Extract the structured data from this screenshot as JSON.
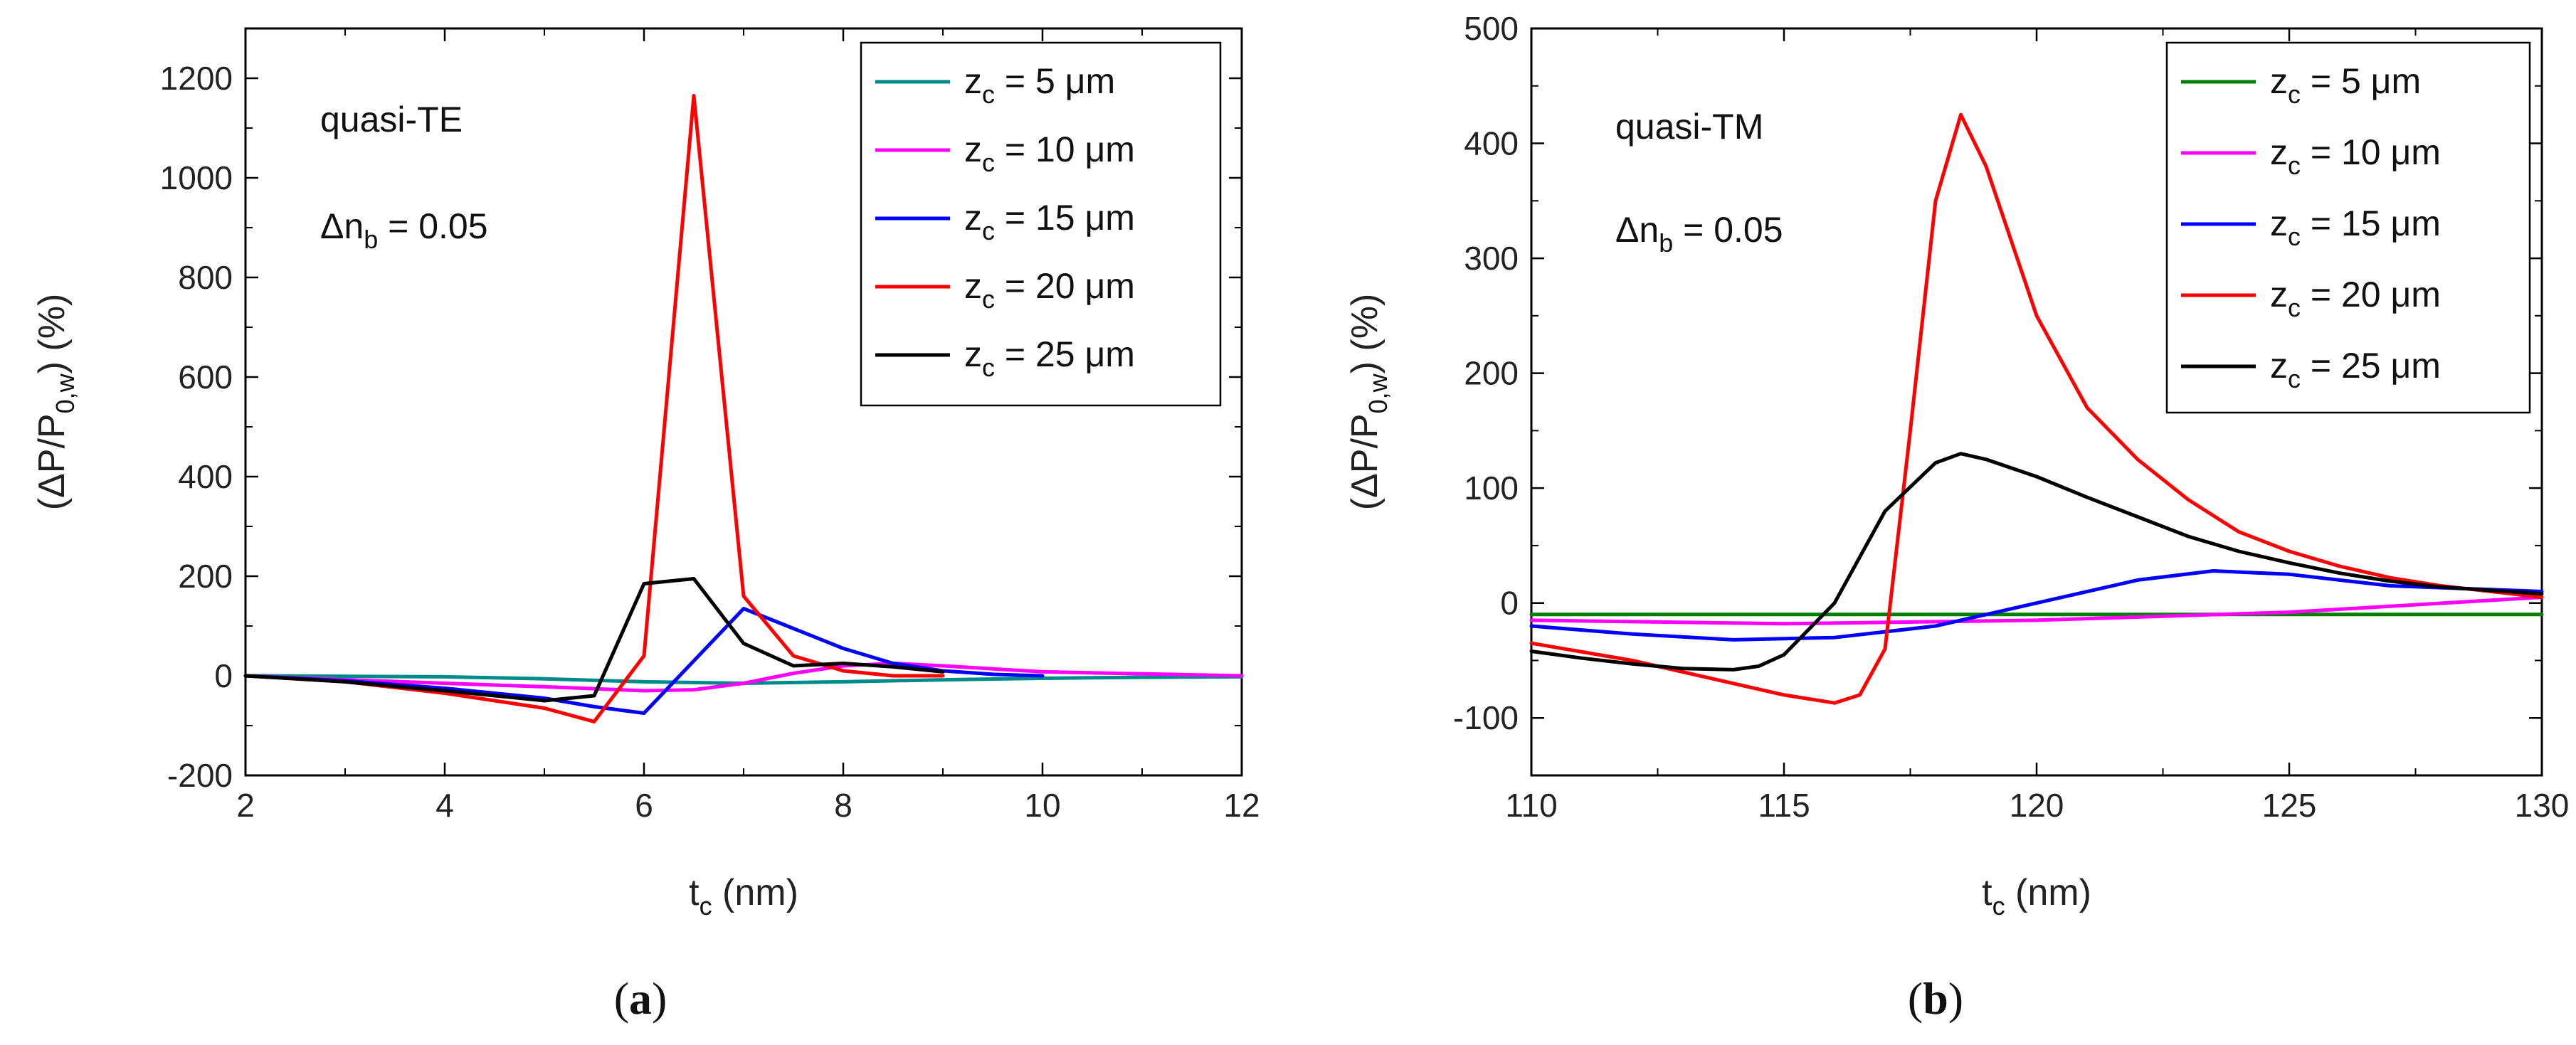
{
  "chart_data": [
    {
      "type": "line",
      "panel_label": "a",
      "annotations": [
        "quasi-TE",
        "Δn",
        "b",
        " = 0.05"
      ],
      "xlabel_main": "t",
      "xlabel_sub": "c",
      "xlabel_unit": " (nm)",
      "ylabel": "(ΔP/P",
      "ylabel_sub": "0,w",
      "ylabel_end": ") (%)",
      "xlim": [
        2,
        12
      ],
      "ylim": [
        -200,
        1300
      ],
      "xticks": [
        "2",
        "4",
        "6",
        "8",
        "10",
        "12"
      ],
      "yticks": [
        "-200",
        "0",
        "200",
        "400",
        "600",
        "800",
        "1000",
        "1200"
      ],
      "legend_prefix": "z",
      "legend_sub": "c",
      "series": [
        {
          "name": " = 5 μm",
          "color": "#008B8B",
          "x": [
            2,
            4,
            5,
            6,
            7,
            8,
            9,
            10,
            11,
            12
          ],
          "y": [
            0,
            -2,
            -6,
            -12,
            -15,
            -12,
            -8,
            -5,
            -3,
            -2
          ]
        },
        {
          "name": " = 10 μm",
          "color": "#FF00FF",
          "x": [
            2,
            3,
            4,
            5,
            6,
            6.5,
            7,
            7.5,
            8,
            8.5,
            9,
            10,
            12
          ],
          "y": [
            0,
            -8,
            -15,
            -22,
            -30,
            -28,
            -15,
            5,
            20,
            25,
            20,
            8,
            0
          ]
        },
        {
          "name": " = 15 μm",
          "color": "#0000FF",
          "x": [
            2,
            3,
            4,
            5,
            5.5,
            6,
            6.5,
            7,
            7.5,
            8,
            8.5,
            9,
            9.5,
            10
          ],
          "y": [
            0,
            -10,
            -25,
            -45,
            -62,
            -75,
            30,
            135,
            95,
            55,
            25,
            10,
            3,
            0
          ]
        },
        {
          "name": " = 20 μm",
          "color": "#FF0000",
          "x": [
            2,
            3,
            4,
            5,
            5.5,
            6,
            6.5,
            7,
            7.5,
            8,
            8.5,
            9
          ],
          "y": [
            0,
            -12,
            -35,
            -65,
            -92,
            40,
            1165,
            160,
            40,
            10,
            0,
            0
          ]
        },
        {
          "name": " = 25 μm",
          "color": "#000000",
          "x": [
            2,
            3,
            4,
            5,
            5.5,
            6,
            6.5,
            7,
            7.5,
            8,
            8.5,
            9
          ],
          "y": [
            0,
            -12,
            -30,
            -50,
            -40,
            185,
            195,
            65,
            20,
            25,
            18,
            8
          ]
        }
      ]
    },
    {
      "type": "line",
      "panel_label": "b",
      "annotations": [
        "quasi-TM",
        "Δn",
        "b",
        " = 0.05"
      ],
      "xlabel_main": "t",
      "xlabel_sub": "c",
      "xlabel_unit": " (nm)",
      "ylabel": "(ΔP/P",
      "ylabel_sub": "0,w",
      "ylabel_end": ") (%)",
      "xlim": [
        110,
        130
      ],
      "ylim": [
        -150,
        500
      ],
      "xticks": [
        "110",
        "115",
        "120",
        "125",
        "130"
      ],
      "yticks": [
        "-100",
        "0",
        "100",
        "200",
        "300",
        "400",
        "500"
      ],
      "legend_prefix": "z",
      "legend_sub": "c",
      "series": [
        {
          "name": " = 5 μm",
          "color": "#008000",
          "x": [
            110,
            115,
            120,
            125,
            130
          ],
          "y": [
            -10,
            -10,
            -10,
            -10,
            -10
          ]
        },
        {
          "name": " = 10 μm",
          "color": "#FF00FF",
          "x": [
            110,
            115,
            120,
            125,
            130
          ],
          "y": [
            -15,
            -18,
            -15,
            -8,
            5
          ]
        },
        {
          "name": " = 15 μm",
          "color": "#0000FF",
          "x": [
            110,
            112,
            114,
            116,
            118,
            120,
            122,
            123.5,
            125,
            127,
            130
          ],
          "y": [
            -20,
            -27,
            -32,
            -30,
            -20,
            0,
            20,
            28,
            25,
            15,
            10
          ]
        },
        {
          "name": " = 20 μm",
          "color": "#FF0000",
          "x": [
            110,
            112,
            114,
            115,
            116,
            116.5,
            117,
            117.5,
            118,
            118.5,
            119,
            120,
            121,
            122,
            123,
            124,
            125,
            126,
            127,
            128,
            130
          ],
          "y": [
            -35,
            -50,
            -70,
            -80,
            -87,
            -80,
            -40,
            150,
            350,
            425,
            380,
            250,
            170,
            125,
            90,
            62,
            45,
            32,
            22,
            15,
            5
          ]
        },
        {
          "name": " = 25 μm",
          "color": "#000000",
          "x": [
            110,
            111,
            112,
            113,
            114,
            114.5,
            115,
            116,
            117,
            118,
            118.5,
            119,
            120,
            121,
            122,
            123,
            124,
            125,
            126,
            127,
            128,
            130
          ],
          "y": [
            -42,
            -48,
            -53,
            -57,
            -58,
            -55,
            -45,
            0,
            80,
            122,
            130,
            125,
            110,
            92,
            75,
            58,
            45,
            35,
            26,
            19,
            14,
            8
          ]
        }
      ]
    }
  ]
}
